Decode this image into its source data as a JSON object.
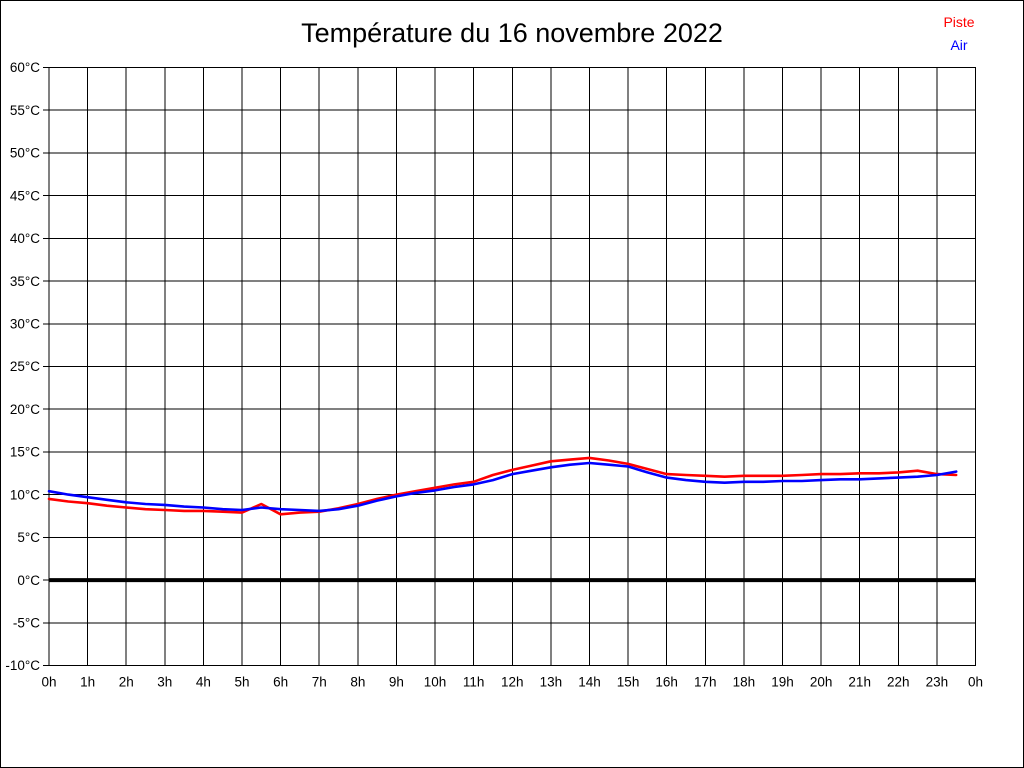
{
  "title": "Température du 16 novembre 2022",
  "legend": {
    "items": [
      {
        "label": "Piste",
        "color": "#ff0000"
      },
      {
        "label": "Air",
        "color": "#0000ff"
      }
    ]
  },
  "chart_data": {
    "type": "line",
    "title": "Température du 16 novembre 2022",
    "xlabel": "",
    "ylabel": "",
    "x_unit": "hour-of-day",
    "y_unit": "°C",
    "xlim": [
      0,
      24
    ],
    "ylim": [
      -10,
      60
    ],
    "grid": true,
    "legend_position": "top-right",
    "zero_line": {
      "value": 0,
      "color": "#000000",
      "width": 4
    },
    "x_ticks": [
      {
        "v": 0,
        "label": "0h"
      },
      {
        "v": 1,
        "label": "1h"
      },
      {
        "v": 2,
        "label": "2h"
      },
      {
        "v": 3,
        "label": "3h"
      },
      {
        "v": 4,
        "label": "4h"
      },
      {
        "v": 5,
        "label": "5h"
      },
      {
        "v": 6,
        "label": "6h"
      },
      {
        "v": 7,
        "label": "7h"
      },
      {
        "v": 8,
        "label": "8h"
      },
      {
        "v": 9,
        "label": "9h"
      },
      {
        "v": 10,
        "label": "10h"
      },
      {
        "v": 11,
        "label": "11h"
      },
      {
        "v": 12,
        "label": "12h"
      },
      {
        "v": 13,
        "label": "13h"
      },
      {
        "v": 14,
        "label": "14h"
      },
      {
        "v": 15,
        "label": "15h"
      },
      {
        "v": 16,
        "label": "16h"
      },
      {
        "v": 17,
        "label": "17h"
      },
      {
        "v": 18,
        "label": "18h"
      },
      {
        "v": 19,
        "label": "19h"
      },
      {
        "v": 20,
        "label": "20h"
      },
      {
        "v": 21,
        "label": "21h"
      },
      {
        "v": 22,
        "label": "22h"
      },
      {
        "v": 23,
        "label": "23h"
      },
      {
        "v": 24,
        "label": "0h"
      }
    ],
    "y_ticks": [
      {
        "v": 60,
        "label": "60°C"
      },
      {
        "v": 55,
        "label": "55°C"
      },
      {
        "v": 50,
        "label": "50°C"
      },
      {
        "v": 45,
        "label": "45°C"
      },
      {
        "v": 40,
        "label": "40°C"
      },
      {
        "v": 35,
        "label": "35°C"
      },
      {
        "v": 30,
        "label": "30°C"
      },
      {
        "v": 25,
        "label": "25°C"
      },
      {
        "v": 20,
        "label": "20°C"
      },
      {
        "v": 15,
        "label": "15°C"
      },
      {
        "v": 10,
        "label": "10°C"
      },
      {
        "v": 5,
        "label": "5°C"
      },
      {
        "v": 0,
        "label": "0°C"
      },
      {
        "v": -5,
        "label": "-5°C"
      },
      {
        "v": -10,
        "label": "-10°C"
      }
    ],
    "x": [
      0,
      0.5,
      1,
      1.5,
      2,
      2.5,
      3,
      3.5,
      4,
      4.5,
      5,
      5.5,
      6,
      6.5,
      7,
      7.5,
      8,
      8.5,
      9,
      9.5,
      10,
      10.5,
      11,
      11.5,
      12,
      12.5,
      13,
      13.5,
      14,
      14.5,
      15,
      15.5,
      16,
      16.5,
      17,
      17.5,
      18,
      18.5,
      19,
      19.5,
      20,
      20.5,
      21,
      21.5,
      22,
      22.5,
      23,
      23.5
    ],
    "series": [
      {
        "name": "Piste",
        "color": "#ff0000",
        "values": [
          9.5,
          9.2,
          9.0,
          8.7,
          8.5,
          8.3,
          8.2,
          8.1,
          8.1,
          8.0,
          7.9,
          8.9,
          7.7,
          7.9,
          8.0,
          8.4,
          8.9,
          9.5,
          10.0,
          10.4,
          10.8,
          11.2,
          11.5,
          12.3,
          12.9,
          13.4,
          13.9,
          14.1,
          14.3,
          14.0,
          13.6,
          13.0,
          12.4,
          12.3,
          12.2,
          12.1,
          12.2,
          12.2,
          12.2,
          12.3,
          12.4,
          12.4,
          12.5,
          12.5,
          12.6,
          12.8,
          12.4,
          12.3
        ]
      },
      {
        "name": "Air",
        "color": "#0000ff",
        "values": [
          10.4,
          10.0,
          9.7,
          9.4,
          9.1,
          8.9,
          8.8,
          8.6,
          8.5,
          8.3,
          8.2,
          8.5,
          8.3,
          8.2,
          8.1,
          8.3,
          8.7,
          9.3,
          9.8,
          10.2,
          10.5,
          10.9,
          11.2,
          11.7,
          12.4,
          12.8,
          13.2,
          13.5,
          13.7,
          13.5,
          13.3,
          12.6,
          12.0,
          11.7,
          11.5,
          11.4,
          11.5,
          11.5,
          11.6,
          11.6,
          11.7,
          11.8,
          11.8,
          11.9,
          12.0,
          12.1,
          12.3,
          12.7
        ]
      }
    ]
  }
}
